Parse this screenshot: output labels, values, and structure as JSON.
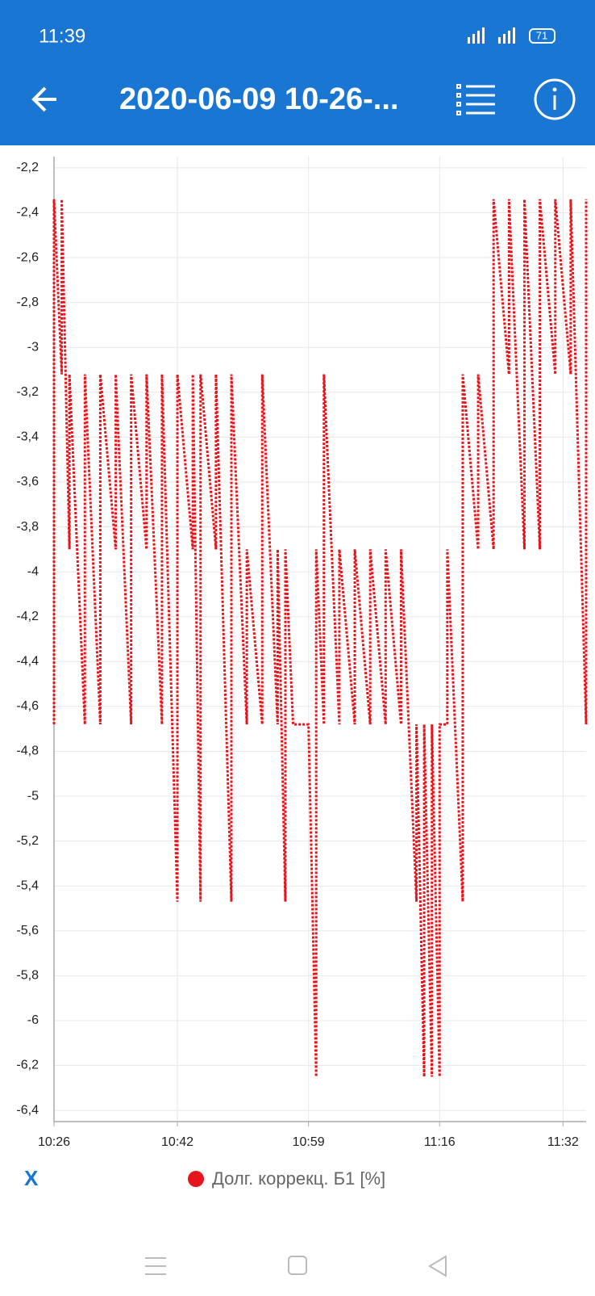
{
  "status_bar": {
    "time": "11:39",
    "battery": "71"
  },
  "header": {
    "title": "2020-06-09 10-26-..."
  },
  "x_toggle": "X",
  "chart_data": {
    "type": "line",
    "x": [
      "10:26",
      "10:26",
      "10:27",
      "10:27",
      "10:28",
      "10:28",
      "10:30",
      "10:30",
      "10:32",
      "10:32",
      "10:34",
      "10:34",
      "10:36",
      "10:36",
      "10:38",
      "10:38",
      "10:40",
      "10:40",
      "10:42",
      "10:42",
      "10:44",
      "10:44",
      "10:45",
      "10:45",
      "10:47",
      "10:47",
      "10:49",
      "10:49",
      "10:51",
      "10:51",
      "10:53",
      "10:53",
      "10:55",
      "10:55",
      "10:56",
      "10:56",
      "10:57",
      "10:57",
      "10:59",
      "10:59",
      "11:00",
      "11:00",
      "11:01",
      "11:01",
      "11:03",
      "11:03",
      "11:05",
      "11:05",
      "11:07",
      "11:07",
      "11:09",
      "11:09",
      "11:11",
      "11:11",
      "11:13",
      "11:13",
      "11:14",
      "11:14",
      "11:15",
      "11:15",
      "11:16",
      "11:16",
      "11:17",
      "11:17",
      "11:19",
      "11:19",
      "11:21",
      "11:21",
      "11:23",
      "11:23",
      "11:25",
      "11:25",
      "11:27",
      "11:27",
      "11:29",
      "11:29",
      "11:31",
      "11:31",
      "11:33",
      "11:33",
      "11:35",
      "11:35"
    ],
    "series": [
      {
        "name": "Долг. коррекц. Б1 [%]",
        "color": "#e8141c",
        "values": [
          -4.68,
          -2.34,
          -3.12,
          -2.34,
          -3.9,
          -3.12,
          -4.68,
          -3.12,
          -4.68,
          -3.12,
          -3.9,
          -3.12,
          -4.68,
          -3.12,
          -3.9,
          -3.12,
          -4.68,
          -3.12,
          -5.47,
          -3.12,
          -3.9,
          -3.12,
          -5.47,
          -3.12,
          -3.9,
          -3.12,
          -5.47,
          -3.12,
          -4.68,
          -3.9,
          -4.68,
          -3.12,
          -4.68,
          -3.9,
          -5.47,
          -3.9,
          -4.68,
          -4.68,
          -4.68,
          -4.68,
          -6.25,
          -3.9,
          -4.68,
          -3.12,
          -4.68,
          -3.9,
          -4.68,
          -3.9,
          -4.68,
          -3.9,
          -4.68,
          -3.9,
          -4.68,
          -3.9,
          -5.47,
          -4.68,
          -6.25,
          -4.68,
          -6.25,
          -4.68,
          -6.25,
          -4.68,
          -4.68,
          -3.9,
          -5.47,
          -3.12,
          -3.9,
          -3.12,
          -3.9,
          -2.34,
          -3.12,
          -2.34,
          -3.9,
          -2.34,
          -3.9,
          -2.34,
          -3.12,
          -2.34,
          -3.12,
          -2.34,
          -4.68,
          -2.34
        ]
      }
    ],
    "xlim": [
      "10:26",
      "11:35"
    ],
    "xticks": [
      "10:26",
      "10:42",
      "10:59",
      "11:16",
      "11:32"
    ],
    "ylim": [
      -6.45,
      -2.15
    ],
    "yticks": [
      {
        "value": -2.2,
        "label": "-2,2"
      },
      {
        "value": -2.4,
        "label": "-2,4"
      },
      {
        "value": -2.6,
        "label": "-2,6"
      },
      {
        "value": -2.8,
        "label": "-2,8"
      },
      -3,
      {
        "value": -3.2,
        "label": "-3,2"
      },
      {
        "value": -3.4,
        "label": "-3,4"
      },
      {
        "value": -3.6,
        "label": "-3,6"
      },
      {
        "value": -3.8,
        "label": "-3,8"
      },
      -4,
      {
        "value": -4.2,
        "label": "-4,2"
      },
      {
        "value": -4.4,
        "label": "-4,4"
      },
      {
        "value": -4.6,
        "label": "-4,6"
      },
      {
        "value": -4.8,
        "label": "-4,8"
      },
      -5,
      {
        "value": -5.2,
        "label": "-5,2"
      },
      {
        "value": -5.4,
        "label": "-5,4"
      },
      {
        "value": -5.6,
        "label": "-5,6"
      },
      {
        "value": -5.8,
        "label": "-5,8"
      },
      -6,
      {
        "value": -6.2,
        "label": "-6,2"
      },
      {
        "value": -6.4,
        "label": "-6,4"
      }
    ],
    "grid": true
  }
}
